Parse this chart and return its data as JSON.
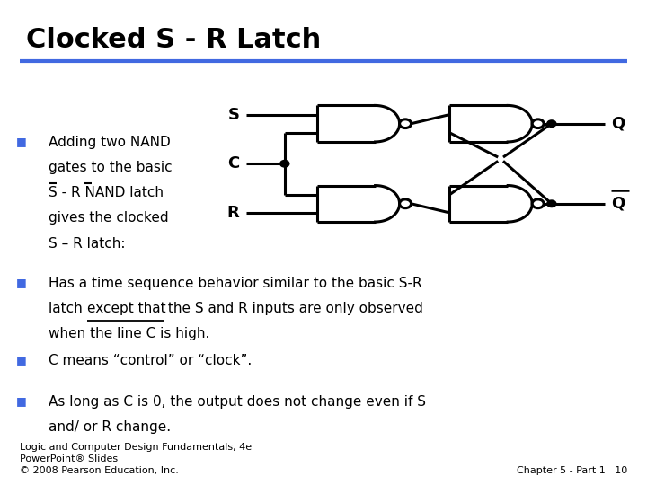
{
  "title": "Clocked S - R Latch",
  "title_fontsize": 22,
  "title_fontweight": "bold",
  "bg_color": "#ffffff",
  "blue_line_color": "#4169e1",
  "text_color": "#000000",
  "bullet_color": "#4169e1",
  "footer_left": "Logic and Computer Design Fundamentals, 4e\nPowerPoint® Slides\n© 2008 Pearson Education, Inc.",
  "footer_right": "Chapter 5 - Part 1   10",
  "footer_fontsize": 8
}
